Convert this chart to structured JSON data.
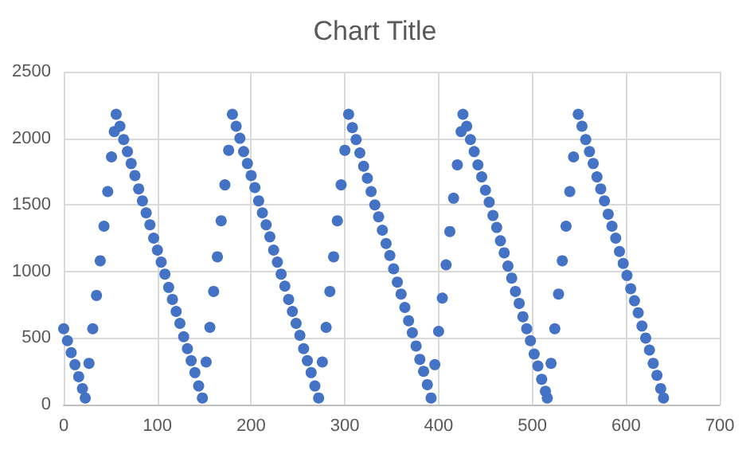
{
  "chart_data": {
    "type": "scatter",
    "title": "Chart Title",
    "x": [
      0,
      4,
      8,
      12,
      16,
      20,
      23,
      27,
      31,
      35,
      39,
      43,
      47,
      51,
      54,
      56,
      60,
      64,
      68,
      72,
      76,
      80,
      84,
      88,
      92,
      96,
      100,
      104,
      108,
      112,
      116,
      120,
      124,
      128,
      132,
      136,
      140,
      144,
      148,
      152,
      156,
      160,
      164,
      168,
      172,
      176,
      180,
      184,
      188,
      192,
      196,
      200,
      204,
      208,
      212,
      216,
      220,
      224,
      228,
      232,
      236,
      240,
      244,
      248,
      252,
      256,
      260,
      264,
      268,
      272,
      276,
      280,
      284,
      288,
      292,
      296,
      300,
      304,
      308,
      312,
      316,
      320,
      324,
      328,
      332,
      336,
      340,
      344,
      348,
      352,
      356,
      360,
      364,
      368,
      372,
      376,
      380,
      384,
      388,
      392,
      396,
      400,
      404,
      408,
      412,
      416,
      420,
      424,
      426,
      430,
      434,
      438,
      442,
      446,
      450,
      454,
      458,
      462,
      466,
      470,
      474,
      478,
      482,
      486,
      490,
      494,
      498,
      502,
      506,
      510,
      514,
      516,
      520,
      524,
      528,
      532,
      536,
      540,
      544,
      549,
      553,
      557,
      561,
      565,
      569,
      573,
      577,
      581,
      585,
      589,
      593,
      597,
      601,
      605,
      609,
      613,
      617,
      621,
      625,
      629,
      633,
      637,
      640
    ],
    "series": [
      {
        "color": "#4472c4",
        "values": [
          570,
          480,
          390,
          300,
          210,
          120,
          50,
          310,
          570,
          820,
          1080,
          1340,
          1600,
          1860,
          2050,
          2180,
          2090,
          1990,
          1900,
          1810,
          1720,
          1620,
          1530,
          1440,
          1350,
          1250,
          1160,
          1070,
          980,
          880,
          790,
          700,
          610,
          510,
          420,
          330,
          240,
          140,
          50,
          320,
          580,
          850,
          1110,
          1380,
          1650,
          1910,
          2180,
          2090,
          2000,
          1900,
          1810,
          1720,
          1630,
          1530,
          1440,
          1350,
          1260,
          1160,
          1070,
          980,
          890,
          790,
          700,
          610,
          520,
          420,
          330,
          240,
          140,
          50,
          320,
          580,
          850,
          1110,
          1380,
          1650,
          1910,
          2180,
          2080,
          1990,
          1890,
          1790,
          1700,
          1600,
          1500,
          1410,
          1310,
          1210,
          1120,
          1020,
          920,
          830,
          730,
          630,
          540,
          440,
          340,
          250,
          150,
          50,
          300,
          550,
          800,
          1050,
          1300,
          1550,
          1800,
          2050,
          2180,
          2090,
          1990,
          1900,
          1800,
          1710,
          1610,
          1520,
          1420,
          1330,
          1230,
          1140,
          1040,
          950,
          850,
          760,
          660,
          570,
          480,
          380,
          290,
          190,
          100,
          50,
          310,
          570,
          830,
          1080,
          1340,
          1600,
          1860,
          2180,
          2090,
          1990,
          1900,
          1810,
          1710,
          1620,
          1530,
          1430,
          1340,
          1250,
          1150,
          1060,
          970,
          870,
          780,
          690,
          590,
          500,
          410,
          310,
          220,
          120,
          50
        ]
      }
    ],
    "xlim": [
      0,
      700
    ],
    "xticks": [
      0,
      100,
      200,
      300,
      400,
      500,
      600,
      700
    ],
    "ylim": [
      0,
      2500
    ],
    "yticks": [
      0,
      500,
      1000,
      1500,
      2000,
      2500
    ],
    "grid": true,
    "marker": "circle"
  }
}
